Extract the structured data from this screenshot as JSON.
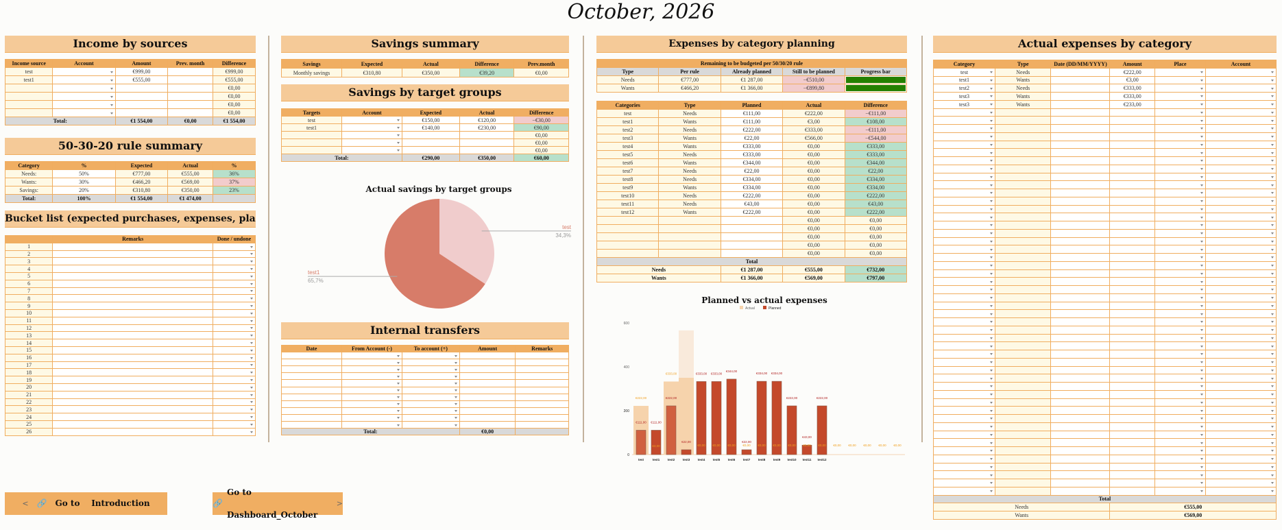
{
  "title": "October, 2026",
  "income": {
    "title": "Income by sources",
    "headers": [
      "Income source",
      "Account",
      "Amount",
      "Prev. month",
      "Difference"
    ],
    "rows": [
      [
        "test",
        "",
        "€999,00",
        "",
        "€999,00"
      ],
      [
        "test1",
        "",
        "€555,00",
        "",
        "€555,00"
      ],
      [
        "",
        "",
        "",
        "",
        "€0,00"
      ],
      [
        "",
        "",
        "",
        "",
        "€0,00"
      ],
      [
        "",
        "",
        "",
        "",
        "€0,00"
      ],
      [
        "",
        "",
        "",
        "",
        "€0,00"
      ]
    ],
    "total": [
      "Total:",
      "€1 554,00",
      "€0,00",
      "€1 554,00"
    ]
  },
  "rule": {
    "title": "50-30-20 rule summary",
    "headers": [
      "Category",
      "%",
      "Expected",
      "Actual",
      "%"
    ],
    "rows": [
      [
        "Needs:",
        "50%",
        "€777,00",
        "€555,00",
        "36%"
      ],
      [
        "Wants:",
        "30%",
        "€466,20",
        "€569,00",
        "37%"
      ],
      [
        "Savings:",
        "20%",
        "€310,80",
        "€350,00",
        "23%"
      ]
    ],
    "row_status": [
      "within",
      "over",
      "within"
    ],
    "total": [
      "Total:",
      "100%",
      "€1 554,00",
      "€1 474,00",
      ""
    ]
  },
  "bucket": {
    "title": "Bucket list (expected purchases, expenses, plans, etc.)",
    "headers": [
      "",
      "Remarks",
      "Done / undone"
    ],
    "rows": [
      [
        "1",
        "",
        ""
      ],
      [
        "2",
        "",
        ""
      ],
      [
        "3",
        "",
        ""
      ],
      [
        "4",
        "",
        ""
      ],
      [
        "5",
        "",
        ""
      ],
      [
        "6",
        "",
        ""
      ],
      [
        "7",
        "",
        ""
      ],
      [
        "8",
        "",
        ""
      ],
      [
        "9",
        "",
        ""
      ],
      [
        "10",
        "",
        ""
      ],
      [
        "11",
        "",
        ""
      ],
      [
        "12",
        "",
        ""
      ],
      [
        "13",
        "",
        ""
      ],
      [
        "14",
        "",
        ""
      ],
      [
        "15",
        "",
        ""
      ],
      [
        "16",
        "",
        ""
      ],
      [
        "17",
        "",
        ""
      ],
      [
        "18",
        "",
        ""
      ],
      [
        "19",
        "",
        ""
      ],
      [
        "20",
        "",
        ""
      ],
      [
        "21",
        "",
        ""
      ],
      [
        "22",
        "",
        ""
      ],
      [
        "23",
        "",
        ""
      ],
      [
        "24",
        "",
        ""
      ],
      [
        "25",
        "",
        ""
      ],
      [
        "26",
        "",
        ""
      ]
    ]
  },
  "savings_summary": {
    "title": "Savings summary",
    "headers": [
      "Savings",
      "Expected",
      "Actual",
      "Difference",
      "Prev.month"
    ],
    "rows": [
      [
        "Monthly savings",
        "€310,80",
        "€350,00",
        "€39,20",
        "€0,00"
      ]
    ]
  },
  "targets": {
    "title": "Savings by target groups",
    "headers": [
      "Targets",
      "Account",
      "Expected",
      "Actual",
      "Difference"
    ],
    "rows": [
      [
        "test",
        "",
        "€150,00",
        "€120,00",
        "−€30,00"
      ],
      [
        "test1",
        "",
        "€140,00",
        "€230,00",
        "€90,00"
      ],
      [
        "",
        "",
        "",
        "",
        "€0,00"
      ],
      [
        "",
        "",
        "",
        "",
        "€0,00"
      ],
      [
        "",
        "",
        "",
        "",
        "€0,00"
      ]
    ],
    "total": [
      "Total:",
      "€290,00",
      "€350,00",
      "€60,00"
    ]
  },
  "pie_chart": {
    "type": "pie",
    "title": "Actual savings by target groups",
    "slices": [
      {
        "label": "test",
        "value": 34.3,
        "pct_label": "34,3%",
        "color": "#f0cccc"
      },
      {
        "label": "test1",
        "value": 65.7,
        "pct_label": "65,7%",
        "color": "#d77c69"
      }
    ]
  },
  "transfers": {
    "title": "Internal transfers",
    "headers": [
      "Date",
      "From Account (-)",
      "To account (+)",
      "Amount",
      "Remarks"
    ],
    "rows": [
      [
        "",
        "",
        "",
        "",
        ""
      ],
      [
        "",
        "",
        "",
        "",
        ""
      ],
      [
        "",
        "",
        "",
        "",
        ""
      ],
      [
        "",
        "",
        "",
        "",
        ""
      ],
      [
        "",
        "",
        "",
        "",
        ""
      ],
      [
        "",
        "",
        "",
        "",
        ""
      ],
      [
        "",
        "",
        "",
        "",
        ""
      ],
      [
        "",
        "",
        "",
        "",
        ""
      ],
      [
        "",
        "",
        "",
        "",
        ""
      ],
      [
        "",
        "",
        "",
        "",
        ""
      ],
      [
        "",
        "",
        "",
        "",
        ""
      ]
    ],
    "total": [
      "Total:",
      "€0,00",
      ""
    ]
  },
  "planning": {
    "title": "Expenses by category planning",
    "remaining_caption": "Remaining to be budgeted per 50/30/20 rule",
    "remaining_headers": [
      "Type",
      "Per rule",
      "Already planned",
      "Still to be planned",
      "Progress bar"
    ],
    "remaining_rows": [
      [
        "Needs",
        "€777,00",
        "€1 287,00",
        "−€510,00"
      ],
      [
        "Wants",
        "€466,20",
        "€1 366,00",
        "−€899,80"
      ]
    ],
    "progress": [
      1.0,
      1.0
    ],
    "headers": [
      "Categories",
      "Type",
      "Planned",
      "Actual",
      "Difference"
    ],
    "rows": [
      [
        "test",
        "Needs",
        "€111,00",
        "€222,00",
        "−€111,00"
      ],
      [
        "test1",
        "Wants",
        "€111,00",
        "€3,00",
        "€108,00"
      ],
      [
        "test2",
        "Needs",
        "€222,00",
        "€333,00",
        "−€111,00"
      ],
      [
        "test3",
        "Wants",
        "€22,00",
        "€566,00",
        "−€544,00"
      ],
      [
        "test4",
        "Wants",
        "€333,00",
        "€0,00",
        "€333,00"
      ],
      [
        "test5",
        "Needs",
        "€333,00",
        "€0,00",
        "€333,00"
      ],
      [
        "test6",
        "Wants",
        "€344,00",
        "€0,00",
        "€344,00"
      ],
      [
        "test7",
        "Needs",
        "€22,00",
        "€0,00",
        "€22,00"
      ],
      [
        "test8",
        "Needs",
        "€334,00",
        "€0,00",
        "€334,00"
      ],
      [
        "test9",
        "Wants",
        "€334,00",
        "€0,00",
        "€334,00"
      ],
      [
        "test10",
        "Needs",
        "€222,00",
        "€0,00",
        "€222,00"
      ],
      [
        "test11",
        "Needs",
        "€43,00",
        "€0,00",
        "€43,00"
      ],
      [
        "test12",
        "Wants",
        "€222,00",
        "€0,00",
        "€222,00"
      ],
      [
        "",
        "",
        "",
        "€0,00",
        "€0,00"
      ],
      [
        "",
        "",
        "",
        "€0,00",
        "€0,00"
      ],
      [
        "",
        "",
        "",
        "€0,00",
        "€0,00"
      ],
      [
        "",
        "",
        "",
        "€0,00",
        "€0,00"
      ],
      [
        "",
        "",
        "",
        "€0,00",
        "€0,00"
      ]
    ],
    "total_label": "Total",
    "summary": [
      [
        "Needs",
        "€1 287,00",
        "€555,00",
        "€732,00"
      ],
      [
        "Wants",
        "€1 366,00",
        "€569,00",
        "€797,00"
      ]
    ]
  },
  "chart_data": {
    "type": "bar",
    "title": "Planned vs actual expenses",
    "legend": [
      "Actual",
      "Planned"
    ],
    "legend_position": "top",
    "categories": [
      "test",
      "test1",
      "test2",
      "test3",
      "test4",
      "test5",
      "test6",
      "test7",
      "test8",
      "test9",
      "test10",
      "test11",
      "test12",
      "",
      "",
      "",
      "",
      ""
    ],
    "series": [
      {
        "name": "Actual",
        "color": "#f6d3ac",
        "values": [
          222,
          3,
          333,
          566,
          0,
          0,
          0,
          0,
          0,
          0,
          0,
          0,
          0,
          0,
          0,
          0,
          0,
          0
        ],
        "labels": [
          "€222,00",
          "€3,00",
          "€333,00",
          "",
          "€0,00",
          "€0,00",
          "€0,00",
          "€0,00",
          "€0,00",
          "€0,00",
          "€0,00",
          "€0,00",
          "€0,00",
          "€0,00",
          "€0,00",
          "€0,00",
          "€0,00",
          "€0,00"
        ]
      },
      {
        "name": "Planned",
        "color": "#c4492b",
        "values": [
          111,
          111,
          222,
          22,
          333,
          333,
          344,
          22,
          334,
          334,
          222,
          43,
          222,
          0,
          0,
          0,
          0,
          0
        ],
        "labels": [
          "€111,00",
          "€111,00",
          "€222,00",
          "€22,00",
          "€333,00",
          "€333,00",
          "€344,00",
          "€22,00",
          "€334,00",
          "€334,00",
          "€222,00",
          "€43,00",
          "€222,00",
          "",
          "",
          "",
          "",
          ""
        ]
      }
    ],
    "ylim": [
      0,
      600
    ],
    "yticks": [
      0,
      200,
      400,
      600
    ],
    "grid": false
  },
  "actual": {
    "title": "Actual expenses by category",
    "headers": [
      "Category",
      "Type",
      "Date (DD/MM/YYYY)",
      "Amount",
      "Place",
      "Account"
    ],
    "rows": [
      [
        "test",
        "Needs",
        "",
        "€222,00",
        "",
        ""
      ],
      [
        "test1",
        "Wants",
        "",
        "€3,00",
        "",
        ""
      ],
      [
        "test2",
        "Needs",
        "",
        "€333,00",
        "",
        ""
      ],
      [
        "test3",
        "Wants",
        "",
        "€333,00",
        "",
        ""
      ],
      [
        "test3",
        "Wants",
        "",
        "€233,00",
        "",
        ""
      ]
    ],
    "total_label": "Total",
    "summary": [
      [
        "Needs",
        "€555,00"
      ],
      [
        "Wants",
        "€569,00"
      ]
    ]
  },
  "nav": {
    "prev_arrow": "<",
    "prev_label": "Go to    Introduction",
    "next_label": "Go to Dashboard_October",
    "next_arrow": ">"
  }
}
